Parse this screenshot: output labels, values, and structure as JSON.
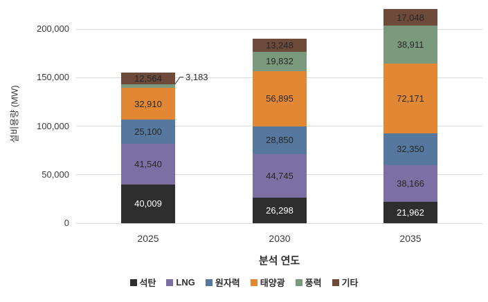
{
  "chart_data": {
    "type": "bar",
    "stacked": true,
    "title": "",
    "xlabel": "분석 연도",
    "ylabel": "설비용량 (MW)",
    "categories": [
      "2025",
      "2030",
      "2035"
    ],
    "series": [
      {
        "key": "coal",
        "name": "석탄",
        "color": "#2E2E2E",
        "label_color": "#FFFFFF",
        "values": [
          40009,
          26298,
          21962
        ]
      },
      {
        "key": "lng",
        "name": "LNG",
        "color": "#7C6FA4",
        "label_color": "#262626",
        "values": [
          41540,
          44745,
          38166
        ]
      },
      {
        "key": "nuclear",
        "name": "원자력",
        "color": "#56789F",
        "label_color": "#262626",
        "values": [
          25100,
          28850,
          32350
        ]
      },
      {
        "key": "solar",
        "name": "태양광",
        "color": "#E28834",
        "label_color": "#262626",
        "values": [
          32910,
          56895,
          72171
        ]
      },
      {
        "key": "wind",
        "name": "풍력",
        "color": "#7B9A7D",
        "label_color": "#262626",
        "values": [
          3183,
          19832,
          38911
        ]
      },
      {
        "key": "other",
        "name": "기타",
        "color": "#6E4A3A",
        "label_color": "#262626",
        "values": [
          12564,
          13248,
          17048
        ]
      }
    ],
    "yticks": [
      0,
      50000,
      100000,
      150000,
      200000
    ],
    "ylim": [
      0,
      225000
    ],
    "grid": true,
    "gridline_color": "#D9D9D9",
    "legend_position": "bottom",
    "annotations": [
      {
        "category": "2025",
        "series_key": "wind",
        "text": "3,183"
      }
    ]
  }
}
